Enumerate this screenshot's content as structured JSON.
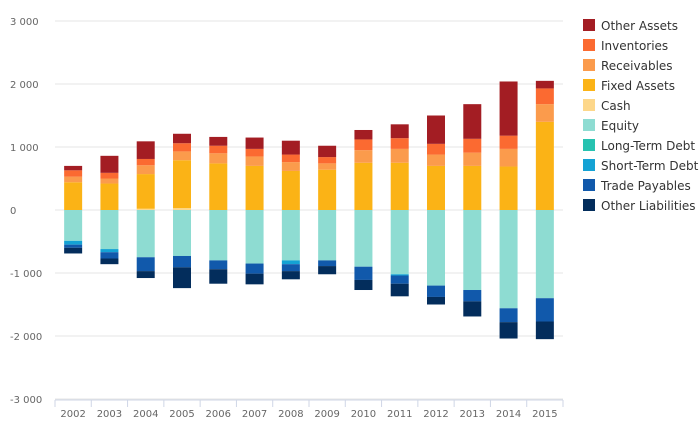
{
  "chart_data": {
    "type": "bar",
    "stacked": true,
    "title": "",
    "xlabel": "",
    "ylabel": "",
    "ylim": [
      -3000,
      3000
    ],
    "yticks": [
      -3000,
      -2000,
      -1000,
      0,
      1000,
      2000,
      3000
    ],
    "ytick_labels": [
      "-3 000",
      "-2 000",
      "-1 000",
      "0",
      "1 000",
      "2 000",
      "3 000"
    ],
    "grid": true,
    "legend_position": "right",
    "categories": [
      "2002",
      "2003",
      "2004",
      "2005",
      "2006",
      "2007",
      "2008",
      "2009",
      "2010",
      "2011",
      "2012",
      "2013",
      "2014",
      "2015"
    ],
    "series": [
      {
        "name": "Cash",
        "color": "#fdd78a",
        "values": [
          0,
          0,
          20,
          30,
          0,
          0,
          0,
          0,
          0,
          0,
          0,
          0,
          0,
          0
        ]
      },
      {
        "name": "Fixed Assets",
        "color": "#fbb316",
        "values": [
          440,
          420,
          550,
          760,
          740,
          700,
          620,
          640,
          750,
          750,
          700,
          700,
          690,
          1400
        ]
      },
      {
        "name": "Receivables",
        "color": "#fb9b4c",
        "values": [
          90,
          80,
          140,
          140,
          160,
          150,
          140,
          100,
          200,
          220,
          180,
          210,
          280,
          280
        ]
      },
      {
        "name": "Inventories",
        "color": "#fb6a31",
        "values": [
          100,
          90,
          100,
          130,
          120,
          120,
          120,
          100,
          170,
          170,
          170,
          220,
          210,
          250
        ]
      },
      {
        "name": "Other Assets",
        "color": "#a31d23",
        "values": [
          70,
          270,
          280,
          150,
          140,
          180,
          220,
          180,
          150,
          220,
          450,
          550,
          860,
          120
        ]
      },
      {
        "name": "Equity",
        "color": "#8edcd2",
        "values": [
          -490,
          -620,
          -750,
          -730,
          -800,
          -850,
          -800,
          -800,
          -900,
          -1020,
          -1200,
          -1270,
          -1560,
          -1400
        ]
      },
      {
        "name": "Long-Term Debt",
        "color": "#27c2b0",
        "values": [
          0,
          0,
          0,
          0,
          0,
          0,
          0,
          0,
          0,
          0,
          0,
          0,
          0,
          0
        ]
      },
      {
        "name": "Short-Term Debt",
        "color": "#14a2d4",
        "values": [
          -60,
          -50,
          0,
          0,
          0,
          0,
          -60,
          0,
          0,
          -20,
          0,
          0,
          0,
          0
        ]
      },
      {
        "name": "Trade Payables",
        "color": "#1159ab",
        "values": [
          -50,
          -100,
          -220,
          -180,
          -140,
          -160,
          -110,
          -90,
          -210,
          -130,
          -180,
          -180,
          -220,
          -370
        ]
      },
      {
        "name": "Other Liabilities",
        "color": "#032d5c",
        "values": [
          -90,
          -90,
          -110,
          -330,
          -230,
          -170,
          -130,
          -130,
          -160,
          -200,
          -120,
          -240,
          -260,
          -280
        ]
      }
    ],
    "legend_order": [
      "Other Assets",
      "Inventories",
      "Receivables",
      "Fixed Assets",
      "Cash",
      "Equity",
      "Long-Term Debt",
      "Short-Term Debt",
      "Trade Payables",
      "Other Liabilities"
    ]
  }
}
